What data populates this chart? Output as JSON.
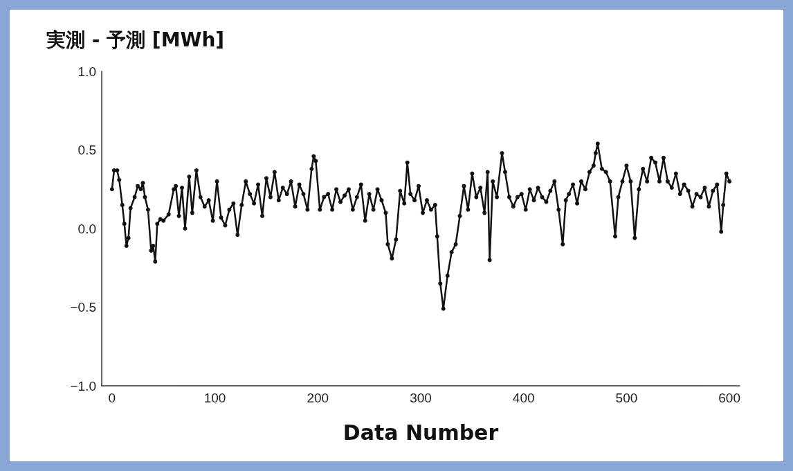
{
  "chart_data": {
    "type": "line",
    "title": "実測 - 予測 [MWh]",
    "xlabel": "Data Number",
    "xlim": [
      -10,
      610
    ],
    "xticks": [
      0,
      100,
      200,
      300,
      400,
      500,
      600
    ],
    "ylim": [
      -1.0,
      1.0
    ],
    "yticks": [
      {
        "value": -1.0,
        "label": "−1.0"
      },
      {
        "value": -0.5,
        "label": "−0.5"
      },
      {
        "value": 0.0,
        "label": "0.0"
      },
      {
        "value": 0.5,
        "label": "0.5"
      },
      {
        "value": 1.0,
        "label": "1.0"
      }
    ],
    "grid": false,
    "marker": "circle",
    "line_style": "solid",
    "series": [
      {
        "color": "#111111",
        "x": [
          0,
          2,
          5,
          7,
          10,
          12,
          14,
          16,
          18,
          22,
          25,
          28,
          30,
          32,
          35,
          38,
          40,
          42,
          44,
          47,
          50,
          55,
          60,
          62,
          65,
          68,
          71,
          75,
          78,
          82,
          86,
          90,
          94,
          98,
          102,
          106,
          110,
          114,
          118,
          122,
          126,
          130,
          134,
          138,
          142,
          146,
          150,
          154,
          158,
          162,
          166,
          170,
          174,
          178,
          182,
          186,
          190,
          194,
          196,
          198,
          202,
          206,
          210,
          214,
          218,
          222,
          226,
          230,
          234,
          238,
          242,
          246,
          250,
          254,
          258,
          262,
          266,
          268,
          272,
          276,
          280,
          284,
          287,
          290,
          294,
          298,
          302,
          306,
          310,
          314,
          316,
          319,
          322,
          326,
          330,
          334,
          338,
          342,
          346,
          350,
          354,
          358,
          362,
          365,
          367,
          370,
          374,
          379,
          382,
          386,
          390,
          394,
          398,
          402,
          406,
          410,
          414,
          418,
          422,
          426,
          430,
          434,
          438,
          441,
          444,
          448,
          452,
          456,
          460,
          464,
          468,
          470,
          472,
          476,
          480,
          484,
          489,
          492,
          496,
          500,
          504,
          508,
          512,
          516,
          520,
          524,
          528,
          532,
          536,
          540,
          544,
          548,
          552,
          556,
          560,
          564,
          568,
          572,
          576,
          580,
          584,
          588,
          592,
          594,
          597,
          600
        ],
        "values": [
          0.25,
          0.37,
          0.37,
          0.31,
          0.15,
          0.03,
          -0.11,
          -0.06,
          0.13,
          0.2,
          0.27,
          0.25,
          0.29,
          0.2,
          0.12,
          -0.14,
          -0.11,
          -0.21,
          0.03,
          0.06,
          0.05,
          0.09,
          0.25,
          0.27,
          0.08,
          0.26,
          0.0,
          0.33,
          0.1,
          0.37,
          0.2,
          0.14,
          0.18,
          0.05,
          0.3,
          0.07,
          0.02,
          0.12,
          0.16,
          -0.04,
          0.15,
          0.3,
          0.22,
          0.16,
          0.28,
          0.08,
          0.32,
          0.2,
          0.36,
          0.18,
          0.26,
          0.22,
          0.3,
          0.14,
          0.28,
          0.22,
          0.12,
          0.38,
          0.46,
          0.43,
          0.12,
          0.2,
          0.22,
          0.12,
          0.25,
          0.17,
          0.21,
          0.25,
          0.12,
          0.2,
          0.28,
          0.05,
          0.22,
          0.12,
          0.25,
          0.18,
          0.1,
          -0.1,
          -0.19,
          -0.07,
          0.24,
          0.16,
          0.42,
          0.22,
          0.18,
          0.27,
          0.1,
          0.18,
          0.12,
          0.15,
          -0.05,
          -0.35,
          -0.51,
          -0.3,
          -0.15,
          -0.1,
          0.08,
          0.27,
          0.12,
          0.35,
          0.2,
          0.26,
          0.1,
          0.36,
          -0.2,
          0.3,
          0.2,
          0.48,
          0.36,
          0.2,
          0.14,
          0.2,
          0.22,
          0.12,
          0.25,
          0.18,
          0.26,
          0.2,
          0.17,
          0.24,
          0.3,
          0.12,
          -0.1,
          0.18,
          0.22,
          0.28,
          0.16,
          0.3,
          0.25,
          0.36,
          0.4,
          0.48,
          0.54,
          0.38,
          0.36,
          0.3,
          -0.05,
          0.2,
          0.3,
          0.4,
          0.3,
          -0.06,
          0.25,
          0.38,
          0.3,
          0.45,
          0.42,
          0.3,
          0.45,
          0.3,
          0.26,
          0.35,
          0.22,
          0.28,
          0.24,
          0.14,
          0.22,
          0.2,
          0.26,
          0.14,
          0.24,
          0.28,
          -0.02,
          0.15,
          0.35,
          0.3
        ]
      }
    ]
  }
}
